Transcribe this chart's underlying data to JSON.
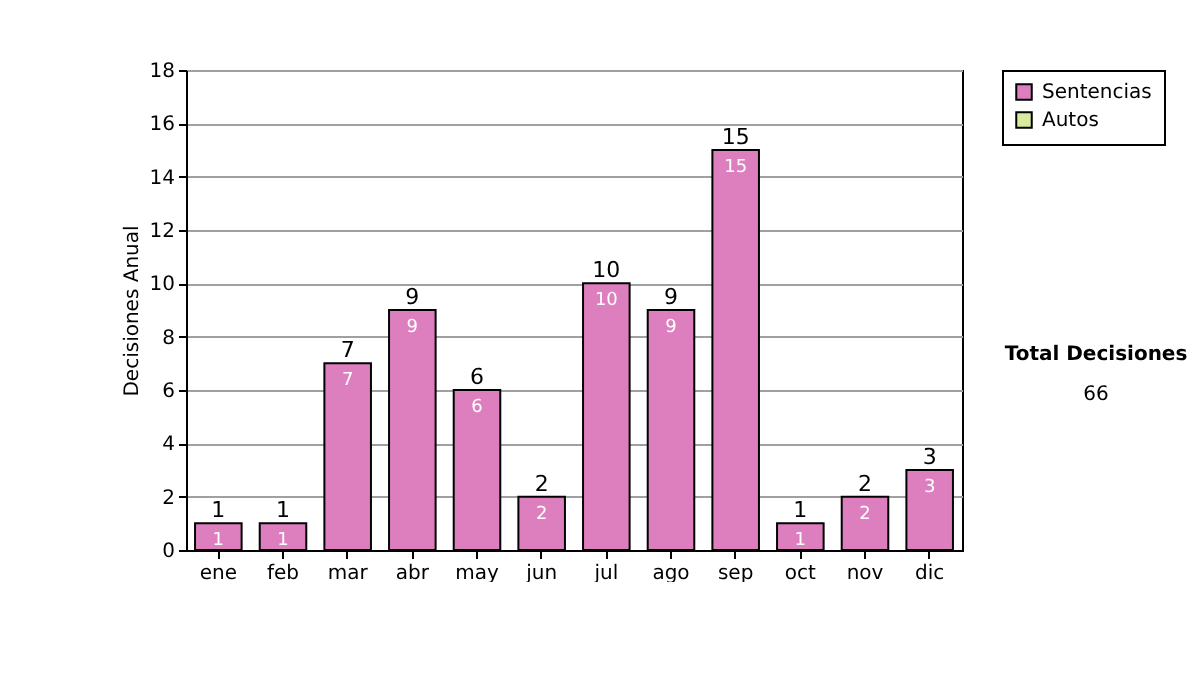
{
  "chart_data": {
    "type": "bar",
    "stacked": true,
    "ylabel": "Decisiones Anual",
    "categories": [
      "ene",
      "feb",
      "mar",
      "abr",
      "may",
      "jun",
      "jul",
      "ago",
      "sep",
      "oct",
      "nov",
      "dic"
    ],
    "series": [
      {
        "name": "Sentencias",
        "color": "#dd7fbf",
        "values": [
          1,
          1,
          7,
          9,
          6,
          2,
          10,
          9,
          15,
          1,
          2,
          3
        ],
        "value_labels": [
          "1",
          "1",
          "7",
          "9",
          "6",
          "2",
          "10",
          "9",
          "15",
          "1",
          "2",
          "3"
        ]
      },
      {
        "name": "Autos",
        "color": "#d9ea9e",
        "values": [
          0,
          0,
          0,
          0,
          0,
          0,
          0,
          0,
          0,
          0,
          0,
          0
        ]
      }
    ],
    "totals": [
      "1",
      "1",
      "7",
      "9",
      "6",
      "2",
      "10",
      "9",
      "15",
      "1",
      "2",
      "3"
    ],
    "ylim": [
      0,
      18
    ],
    "yticks": [
      0,
      2,
      4,
      6,
      8,
      10,
      12,
      14,
      16,
      18
    ],
    "grid": "y",
    "legend": "right",
    "annotations": [
      "Total Decisiones",
      "66"
    ]
  }
}
